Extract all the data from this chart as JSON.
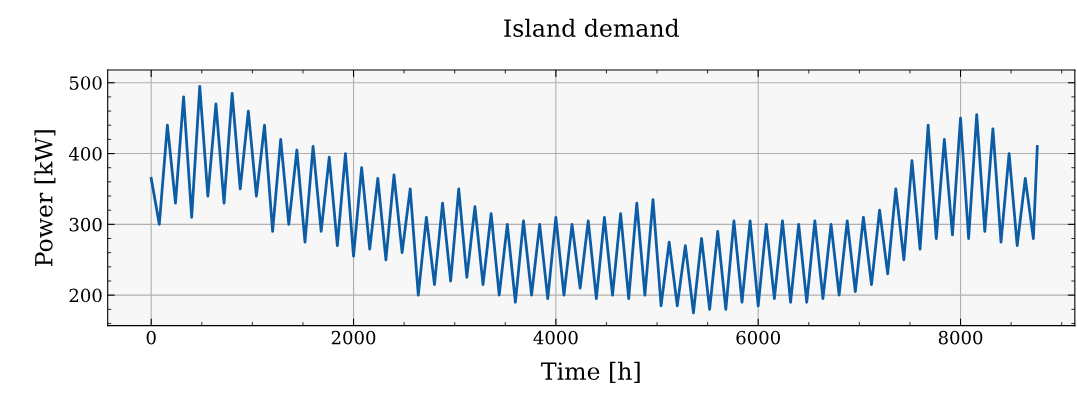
{
  "chart_data": {
    "type": "line",
    "title": "Island demand",
    "xlabel": "Time [h]",
    "ylabel": "Power [kW]",
    "x": [
      0,
      80,
      160,
      240,
      320,
      400,
      480,
      560,
      640,
      720,
      800,
      880,
      960,
      1040,
      1120,
      1200,
      1280,
      1360,
      1440,
      1520,
      1600,
      1680,
      1760,
      1840,
      1920,
      2000,
      2080,
      2160,
      2240,
      2320,
      2400,
      2480,
      2560,
      2640,
      2720,
      2800,
      2880,
      2960,
      3040,
      3120,
      3200,
      3280,
      3360,
      3440,
      3520,
      3600,
      3680,
      3760,
      3840,
      3920,
      4000,
      4080,
      4160,
      4240,
      4320,
      4400,
      4480,
      4560,
      4640,
      4720,
      4800,
      4880,
      4960,
      5040,
      5120,
      5200,
      5280,
      5360,
      5440,
      5520,
      5600,
      5680,
      5760,
      5840,
      5920,
      6000,
      6080,
      6160,
      6240,
      6320,
      6400,
      6480,
      6560,
      6640,
      6720,
      6800,
      6880,
      6960,
      7040,
      7120,
      7200,
      7280,
      7360,
      7440,
      7520,
      7600,
      7680,
      7760,
      7840,
      7920,
      8000,
      8080,
      8160,
      8240,
      8320,
      8400,
      8480,
      8560,
      8640,
      8720,
      8759
    ],
    "series": [
      {
        "color": "#0c5da5",
        "values": [
          365,
          300,
          440,
          330,
          480,
          310,
          495,
          340,
          470,
          330,
          485,
          350,
          460,
          340,
          440,
          290,
          420,
          300,
          405,
          275,
          410,
          290,
          395,
          270,
          400,
          255,
          380,
          265,
          365,
          250,
          370,
          260,
          350,
          200,
          310,
          215,
          330,
          220,
          350,
          225,
          325,
          215,
          315,
          200,
          300,
          190,
          305,
          200,
          300,
          195,
          310,
          200,
          300,
          210,
          305,
          195,
          310,
          200,
          315,
          195,
          330,
          200,
          335,
          185,
          275,
          185,
          270,
          175,
          280,
          180,
          290,
          180,
          305,
          190,
          305,
          185,
          300,
          195,
          305,
          190,
          300,
          190,
          305,
          195,
          300,
          200,
          305,
          205,
          310,
          215,
          320,
          230,
          350,
          250,
          390,
          265,
          440,
          280,
          420,
          285,
          450,
          280,
          455,
          290,
          435,
          275,
          400,
          270,
          365,
          280,
          410
        ]
      }
    ],
    "xlim": [
      -430,
      9130
    ],
    "ylim": [
      157,
      518
    ],
    "xticks": [
      0,
      2000,
      4000,
      6000,
      8000
    ],
    "yticks": [
      200,
      300,
      400,
      500
    ],
    "grid": true,
    "marker": "none",
    "line_style": "solid"
  }
}
